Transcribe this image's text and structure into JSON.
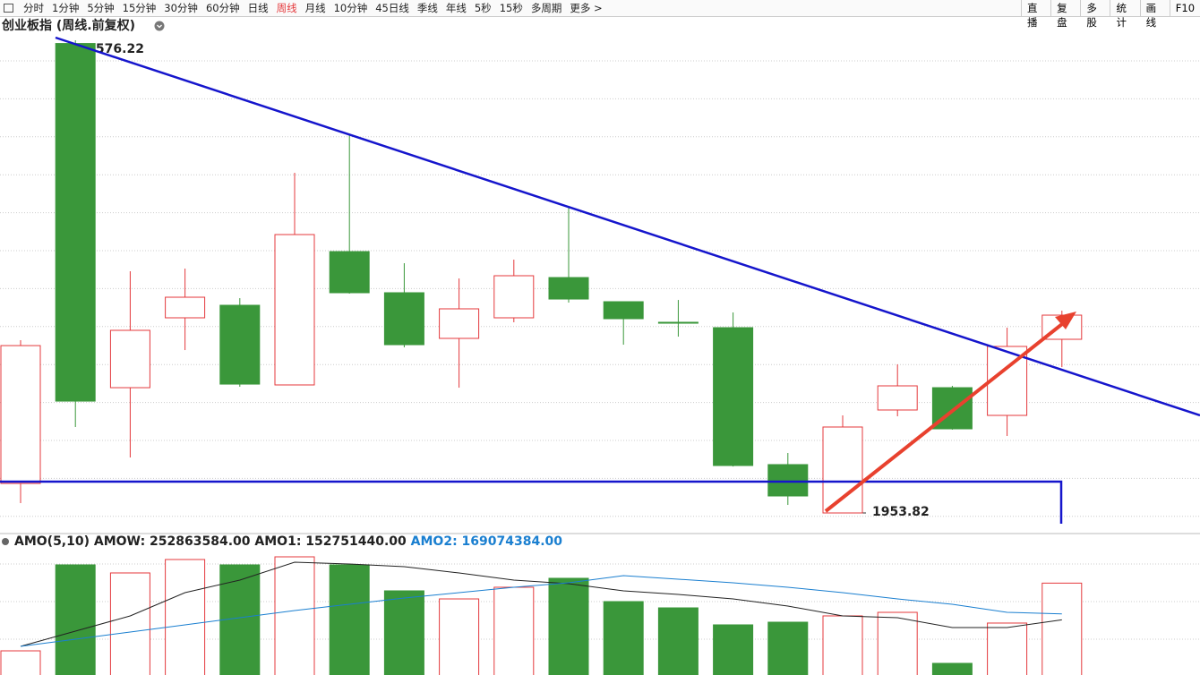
{
  "toolbar": {
    "left": [
      "分时",
      "1分钟",
      "5分钟",
      "15分钟",
      "30分钟",
      "60分钟",
      "日线",
      "周线",
      "月线",
      "10分钟",
      "45日线",
      "季线",
      "年线",
      "5秒",
      "15秒",
      "多周期",
      "更多 >"
    ],
    "selected_index": 7,
    "right": [
      "直播",
      "复盘",
      "多股",
      "统计",
      "画线",
      "F10"
    ]
  },
  "chart_data": {
    "type": "candlestick",
    "title": "创业板指 (周线.前复权)",
    "up_color": "#e4393c",
    "down_color": "#3a973a",
    "open": [
      1992.7,
      2572.0,
      2118.8,
      2210.8,
      2227.3,
      2122.4,
      2298.0,
      2243.8,
      2183.7,
      2210.8,
      2263.8,
      2232.0,
      2204.9,
      2197.8,
      2017.5,
      1953.82,
      2089.4,
      2118.8,
      2082.3,
      2182.5
    ],
    "high": [
      2181.3,
      2576.22,
      2272.1,
      2275.6,
      2236.7,
      2401.7,
      2452.4,
      2282.7,
      2262.6,
      2287.4,
      2355.8,
      2232.0,
      2234.3,
      2217.8,
      2032.8,
      2082.3,
      2149.5,
      2121.2,
      2197.8,
      2220.2
    ],
    "low": [
      1966.8,
      2067.0,
      2026.9,
      2168.3,
      2120.0,
      2122.4,
      2242.6,
      2171.9,
      2118.8,
      2204.9,
      2230.8,
      2175.4,
      2186.0,
      2015.0,
      1964.4,
      1953.82,
      2081.1,
      2063.5,
      2055.2,
      2145.9
    ],
    "close": [
      2174.2,
      2101.1,
      2194.3,
      2237.9,
      2123.5,
      2320.4,
      2243.8,
      2175.4,
      2222.6,
      2266.2,
      2235.5,
      2209.6,
      2203.7,
      2016.3,
      1976.2,
      2067.0,
      2121.2,
      2064.6,
      2173.1,
      2214.3
    ],
    "volume": {
      "type": "bar",
      "name": "AMO(5,10)",
      "series": [
        {
          "name": "AMOW:",
          "color": "#222222",
          "values": [
            68300000,
            302600000,
            280600000,
            317200000,
            302600000,
            324500000,
            302600000,
            231800000,
            209800000,
            241600000,
            266000000,
            202500000,
            185400000,
            139100000,
            146400000,
            163500000,
            173200000,
            34200000,
            144000000,
            252863584
          ],
          "value_labels": [
            null,
            null,
            null,
            null,
            null,
            null,
            null,
            null,
            null,
            null,
            null,
            null,
            null,
            null,
            null,
            null,
            null,
            null,
            null,
            "252863584.00"
          ]
        },
        {
          "name": "AMO1:",
          "color": "#222222",
          "values": [
            80500000,
            122000000,
            163500000,
            226900000,
            261100000,
            309900000,
            305000000,
            297700000,
            280600000,
            261100000,
            251300000,
            231800000,
            222000000,
            209800000,
            190300000,
            163500000,
            158600000,
            131800000,
            131800000,
            152751440
          ],
          "value_labels": [
            null,
            null,
            null,
            null,
            null,
            null,
            null,
            null,
            null,
            null,
            null,
            null,
            null,
            null,
            null,
            null,
            null,
            null,
            null,
            "152751440.00"
          ]
        },
        {
          "name": "AMO2:",
          "color": "#1a7fd0",
          "values": [
            80500000,
            100000000,
            119600000,
            139100000,
            158600000,
            178100000,
            195200000,
            212300000,
            226900000,
            241600000,
            253800000,
            273300000,
            263500000,
            253800000,
            241600000,
            226900000,
            209800000,
            195200000,
            173200000,
            169074384
          ],
          "value_labels": [
            null,
            null,
            null,
            null,
            null,
            null,
            null,
            null,
            null,
            null,
            null,
            null,
            null,
            null,
            null,
            null,
            null,
            null,
            null,
            "169074384.00"
          ]
        }
      ]
    }
  }
}
